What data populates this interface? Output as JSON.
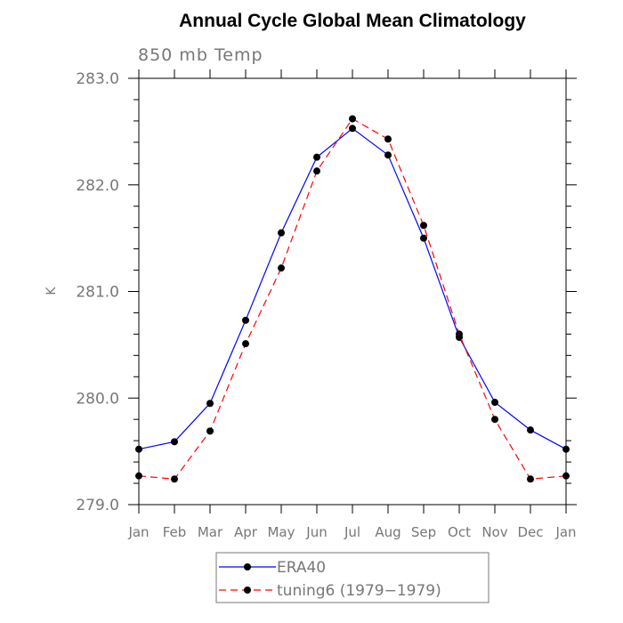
{
  "chart_data": {
    "type": "line",
    "title": "Annual Cycle Global Mean Climatology",
    "subtitle": "850 mb Temp",
    "ylabel": "K",
    "xlabel": "",
    "categories": [
      "Jan",
      "Feb",
      "Mar",
      "Apr",
      "May",
      "Jun",
      "Jul",
      "Aug",
      "Sep",
      "Oct",
      "Nov",
      "Dec",
      "Jan"
    ],
    "ylim": [
      279.0,
      283.0
    ],
    "yticks": [
      "279.0",
      "280.0",
      "281.0",
      "282.0",
      "283.0"
    ],
    "series": [
      {
        "name": "ERA40",
        "color": "#0000ff",
        "dash": "solid",
        "values": [
          279.52,
          279.59,
          279.95,
          280.73,
          281.55,
          282.26,
          282.53,
          282.28,
          281.5,
          280.57,
          279.96,
          279.7,
          279.52
        ]
      },
      {
        "name": "tuning6 (1979−1979)",
        "color": "#ff0000",
        "dash": "dashed",
        "values": [
          279.27,
          279.24,
          279.69,
          280.51,
          281.22,
          282.13,
          282.62,
          282.43,
          281.62,
          280.6,
          279.8,
          279.24,
          279.27
        ]
      }
    ],
    "marker_color": "#000000",
    "legend_position": "bottom"
  }
}
